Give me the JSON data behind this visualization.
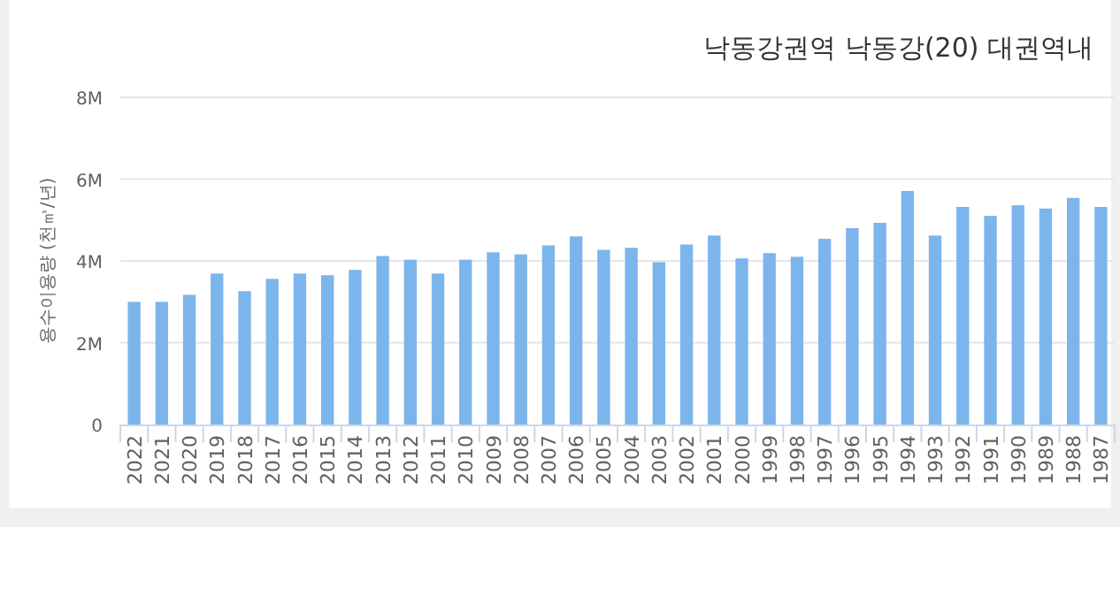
{
  "chart_data": {
    "type": "bar",
    "title": "낙동강권역 낙동강(20) 대권역내",
    "ylabel": "용수이용량 (천㎥/년)",
    "categories": [
      "2022",
      "2021",
      "2020",
      "2019",
      "2018",
      "2017",
      "2016",
      "2015",
      "2014",
      "2013",
      "2012",
      "2011",
      "2010",
      "2009",
      "2008",
      "2007",
      "2006",
      "2005",
      "2004",
      "2003",
      "2002",
      "2001",
      "2000",
      "1999",
      "1998",
      "1997",
      "1996",
      "1995",
      "1994",
      "1993",
      "1992",
      "1991",
      "1990",
      "1989",
      "1988",
      "1987"
    ],
    "values": [
      3.0,
      3.0,
      3.17,
      3.69,
      3.26,
      3.56,
      3.69,
      3.65,
      3.78,
      4.12,
      4.03,
      3.69,
      4.03,
      4.21,
      4.16,
      4.38,
      4.6,
      4.27,
      4.32,
      3.97,
      4.4,
      4.62,
      4.06,
      4.19,
      4.1,
      4.54,
      4.8,
      4.93,
      5.71,
      4.62,
      5.32,
      5.1,
      5.36,
      5.28,
      5.54,
      5.32
    ],
    "color": "#7cb5ec",
    "ylim": [
      0,
      8
    ],
    "yticks": [
      {
        "value": 0,
        "label": "0"
      },
      {
        "value": 2,
        "label": "2M"
      },
      {
        "value": 4,
        "label": "4M"
      },
      {
        "value": 6,
        "label": "6M"
      },
      {
        "value": 8,
        "label": "8M"
      }
    ],
    "grid": "y"
  }
}
